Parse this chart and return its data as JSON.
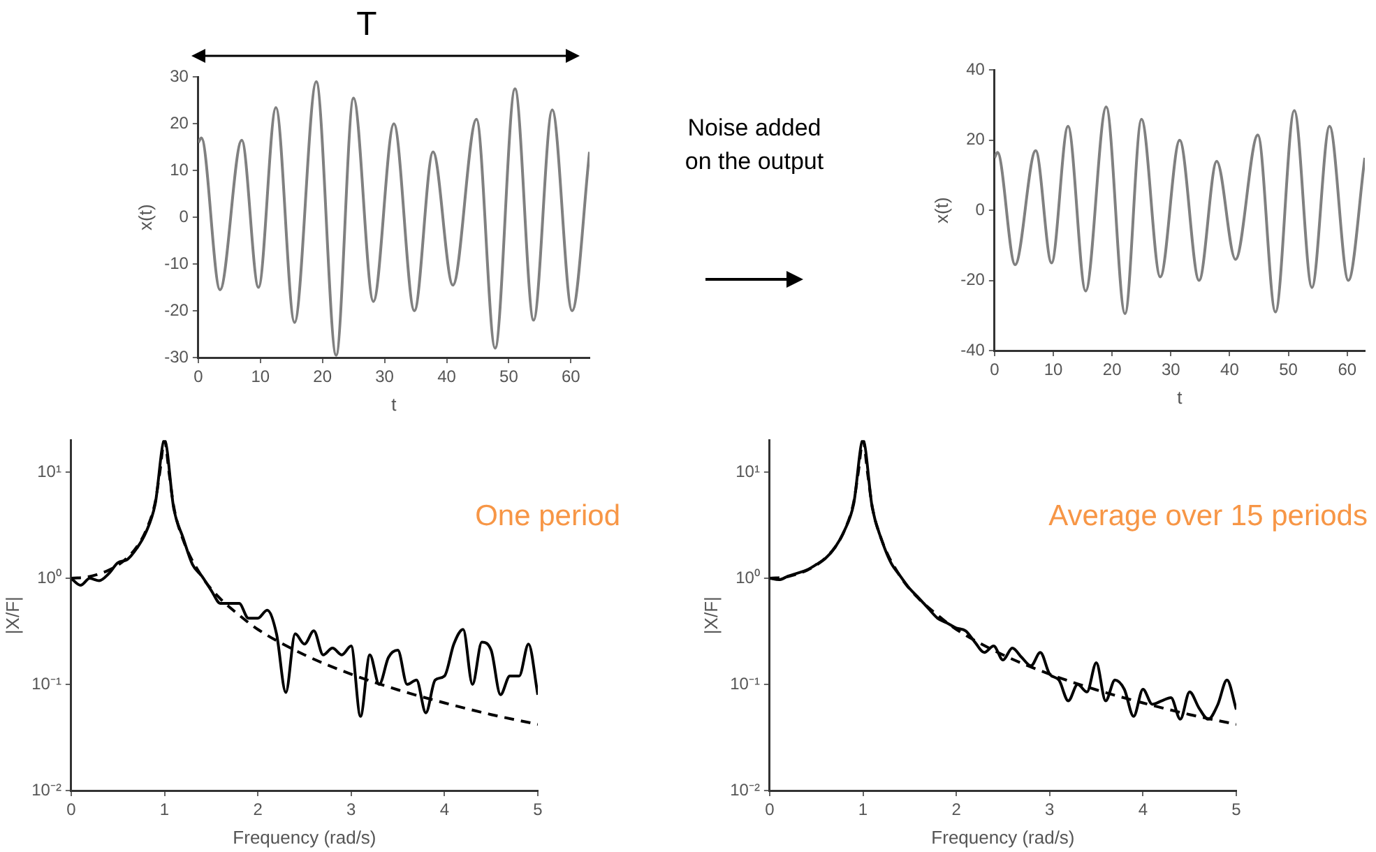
{
  "chart_data": [
    {
      "type": "line",
      "xlabel": "t",
      "ylabel": "x(t)",
      "annotations": [
        "T"
      ],
      "x": [
        0,
        0.5,
        3.5,
        7,
        9.7,
        12.5,
        15.5,
        19,
        22.2,
        25,
        28.2,
        31.5,
        34.8,
        37.8,
        41,
        44.8,
        47.8,
        51,
        54,
        57,
        60.2,
        63
      ],
      "series": [
        {
          "color": "#808080",
          "values": [
            16,
            17,
            -15.5,
            16.5,
            -15,
            23.5,
            -22.5,
            29,
            -29.5,
            25.5,
            -18,
            20,
            -20,
            14,
            -14.5,
            21,
            -28,
            27.5,
            -22,
            23,
            -20,
            14
          ]
        }
      ],
      "xlim": [
        0,
        63
      ],
      "xticks": [
        0,
        10,
        20,
        30,
        40,
        50,
        60
      ],
      "ylim": [
        -30,
        30
      ],
      "yticks": [
        -30,
        -20,
        -10,
        0,
        10,
        20,
        30
      ],
      "grid": false,
      "legend": false
    },
    {
      "type": "other",
      "annotations": [
        "Noise added on the output"
      ]
    },
    {
      "type": "line",
      "xlabel": "t",
      "ylabel": "x(t)",
      "x": [
        0,
        0.5,
        3.5,
        7,
        9.7,
        12.5,
        15.5,
        19,
        22.2,
        25,
        28.2,
        31.5,
        34.8,
        37.8,
        41,
        44.8,
        47.8,
        51,
        54,
        57,
        60.2,
        63
      ],
      "series": [
        {
          "color": "#808080",
          "values": [
            15,
            16.5,
            -15.5,
            17,
            -15,
            24,
            -23,
            29.5,
            -29.5,
            26,
            -19,
            20,
            -20,
            14,
            -14,
            21.5,
            -29,
            28.5,
            -22,
            24,
            -20,
            15
          ]
        }
      ],
      "xlim": [
        0,
        63
      ],
      "xticks": [
        0,
        10,
        20,
        30,
        40,
        50,
        60
      ],
      "ylim": [
        -40,
        40
      ],
      "yticks": [
        -40,
        -20,
        0,
        20,
        40
      ],
      "grid": false,
      "legend": false
    },
    {
      "type": "line",
      "xlabel": "Frequency (rad/s)",
      "ylabel": "|X/F|",
      "annotations": [
        "One period"
      ],
      "log": "y",
      "x": [
        0,
        0.1,
        0.2,
        0.3,
        0.4,
        0.5,
        0.6,
        0.7,
        0.8,
        0.9,
        1,
        1.1,
        1.2,
        1.3,
        1.4,
        1.5,
        1.6,
        1.7,
        1.8,
        1.9,
        2,
        2.1,
        2.2,
        2.3,
        2.4,
        2.5,
        2.6,
        2.7,
        2.8,
        2.9,
        3,
        3.1,
        3.2,
        3.3,
        3.4,
        3.5,
        3.6,
        3.7,
        3.8,
        3.9,
        4,
        4.1,
        4.2,
        4.3,
        4.4,
        4.5,
        4.6,
        4.7,
        4.8,
        4.9,
        5
      ],
      "series": [
        {
          "color": "#000000",
          "line_style": "dashed",
          "x": [
            0,
            0.2,
            0.4,
            0.5,
            0.6,
            0.7,
            0.8,
            0.9,
            0.95,
            1,
            1.05,
            1.1,
            1.2,
            1.4,
            1.6,
            1.8,
            2,
            2.5,
            3,
            3.5,
            4,
            4.5,
            5
          ],
          "values": [
            1,
            1.04,
            1.19,
            1.33,
            1.56,
            1.96,
            2.8,
            5.2,
            10,
            20,
            9.7,
            4.7,
            2.3,
            1.04,
            0.64,
            0.45,
            0.33,
            0.19,
            0.125,
            0.089,
            0.067,
            0.052,
            0.042
          ]
        },
        {
          "color": "#000000",
          "line_style": "solid",
          "values": [
            1.0,
            0.86,
            1.0,
            0.95,
            1.1,
            1.4,
            1.5,
            1.9,
            2.7,
            5,
            20,
            4.5,
            2.4,
            1.35,
            1.05,
            0.77,
            0.58,
            0.58,
            0.58,
            0.42,
            0.42,
            0.5,
            0.3,
            0.084,
            0.3,
            0.24,
            0.32,
            0.19,
            0.22,
            0.19,
            0.23,
            0.05,
            0.19,
            0.1,
            0.18,
            0.21,
            0.1,
            0.11,
            0.054,
            0.11,
            0.12,
            0.24,
            0.33,
            0.1,
            0.25,
            0.21,
            0.08,
            0.12,
            0.12,
            0.24,
            0.08
          ]
        }
      ],
      "xlim": [
        0,
        5
      ],
      "xticks": [
        0,
        1,
        2,
        3,
        4,
        5
      ],
      "ylim": [
        0.01,
        20
      ],
      "yticks": [
        {
          "value": 0.01,
          "label": "10⁻²"
        },
        {
          "value": 0.1,
          "label": "10⁻¹"
        },
        {
          "value": 1,
          "label": "10⁰"
        },
        {
          "value": 10,
          "label": "10¹"
        }
      ],
      "grid": false,
      "legend": false
    },
    {
      "type": "line",
      "xlabel": "Frequency (rad/s)",
      "ylabel": "|X/F|",
      "annotations": [
        "Average over 15 periods"
      ],
      "log": "y",
      "x": [
        0,
        0.1,
        0.2,
        0.3,
        0.4,
        0.5,
        0.6,
        0.7,
        0.8,
        0.9,
        1,
        1.1,
        1.2,
        1.3,
        1.4,
        1.5,
        1.6,
        1.7,
        1.8,
        1.9,
        2,
        2.1,
        2.2,
        2.3,
        2.4,
        2.5,
        2.6,
        2.7,
        2.8,
        2.9,
        3,
        3.1,
        3.2,
        3.3,
        3.4,
        3.5,
        3.6,
        3.7,
        3.8,
        3.9,
        4,
        4.1,
        4.2,
        4.3,
        4.4,
        4.5,
        4.6,
        4.7,
        4.8,
        4.9,
        5
      ],
      "series": [
        {
          "color": "#000000",
          "line_style": "dashed",
          "x": [
            0,
            0.2,
            0.4,
            0.5,
            0.6,
            0.7,
            0.8,
            0.9,
            0.95,
            1,
            1.05,
            1.1,
            1.2,
            1.4,
            1.6,
            1.8,
            2,
            2.5,
            3,
            3.5,
            4,
            4.5,
            5
          ],
          "values": [
            1,
            1.04,
            1.19,
            1.33,
            1.56,
            1.96,
            2.8,
            5.2,
            10,
            20,
            9.7,
            4.7,
            2.3,
            1.04,
            0.64,
            0.45,
            0.33,
            0.19,
            0.125,
            0.089,
            0.067,
            0.052,
            0.042
          ]
        },
        {
          "color": "#000000",
          "line_style": "solid",
          "values": [
            1.0,
            0.97,
            1.05,
            1.12,
            1.2,
            1.35,
            1.55,
            1.95,
            2.8,
            5,
            20,
            4.6,
            2.3,
            1.4,
            1.05,
            0.8,
            0.65,
            0.52,
            0.42,
            0.38,
            0.34,
            0.32,
            0.25,
            0.2,
            0.23,
            0.17,
            0.22,
            0.18,
            0.15,
            0.2,
            0.125,
            0.11,
            0.07,
            0.1,
            0.085,
            0.16,
            0.07,
            0.11,
            0.09,
            0.05,
            0.09,
            0.065,
            0.07,
            0.075,
            0.047,
            0.085,
            0.06,
            0.047,
            0.064,
            0.11,
            0.058
          ]
        }
      ],
      "xlim": [
        0,
        5
      ],
      "xticks": [
        0,
        1,
        2,
        3,
        4,
        5
      ],
      "ylim": [
        0.01,
        20
      ],
      "yticks": [
        {
          "value": 0.01,
          "label": "10⁻²"
        },
        {
          "value": 0.1,
          "label": "10⁻¹"
        },
        {
          "value": 1,
          "label": "10⁰"
        },
        {
          "value": 10,
          "label": "10¹"
        }
      ],
      "grid": false,
      "legend": false
    }
  ]
}
